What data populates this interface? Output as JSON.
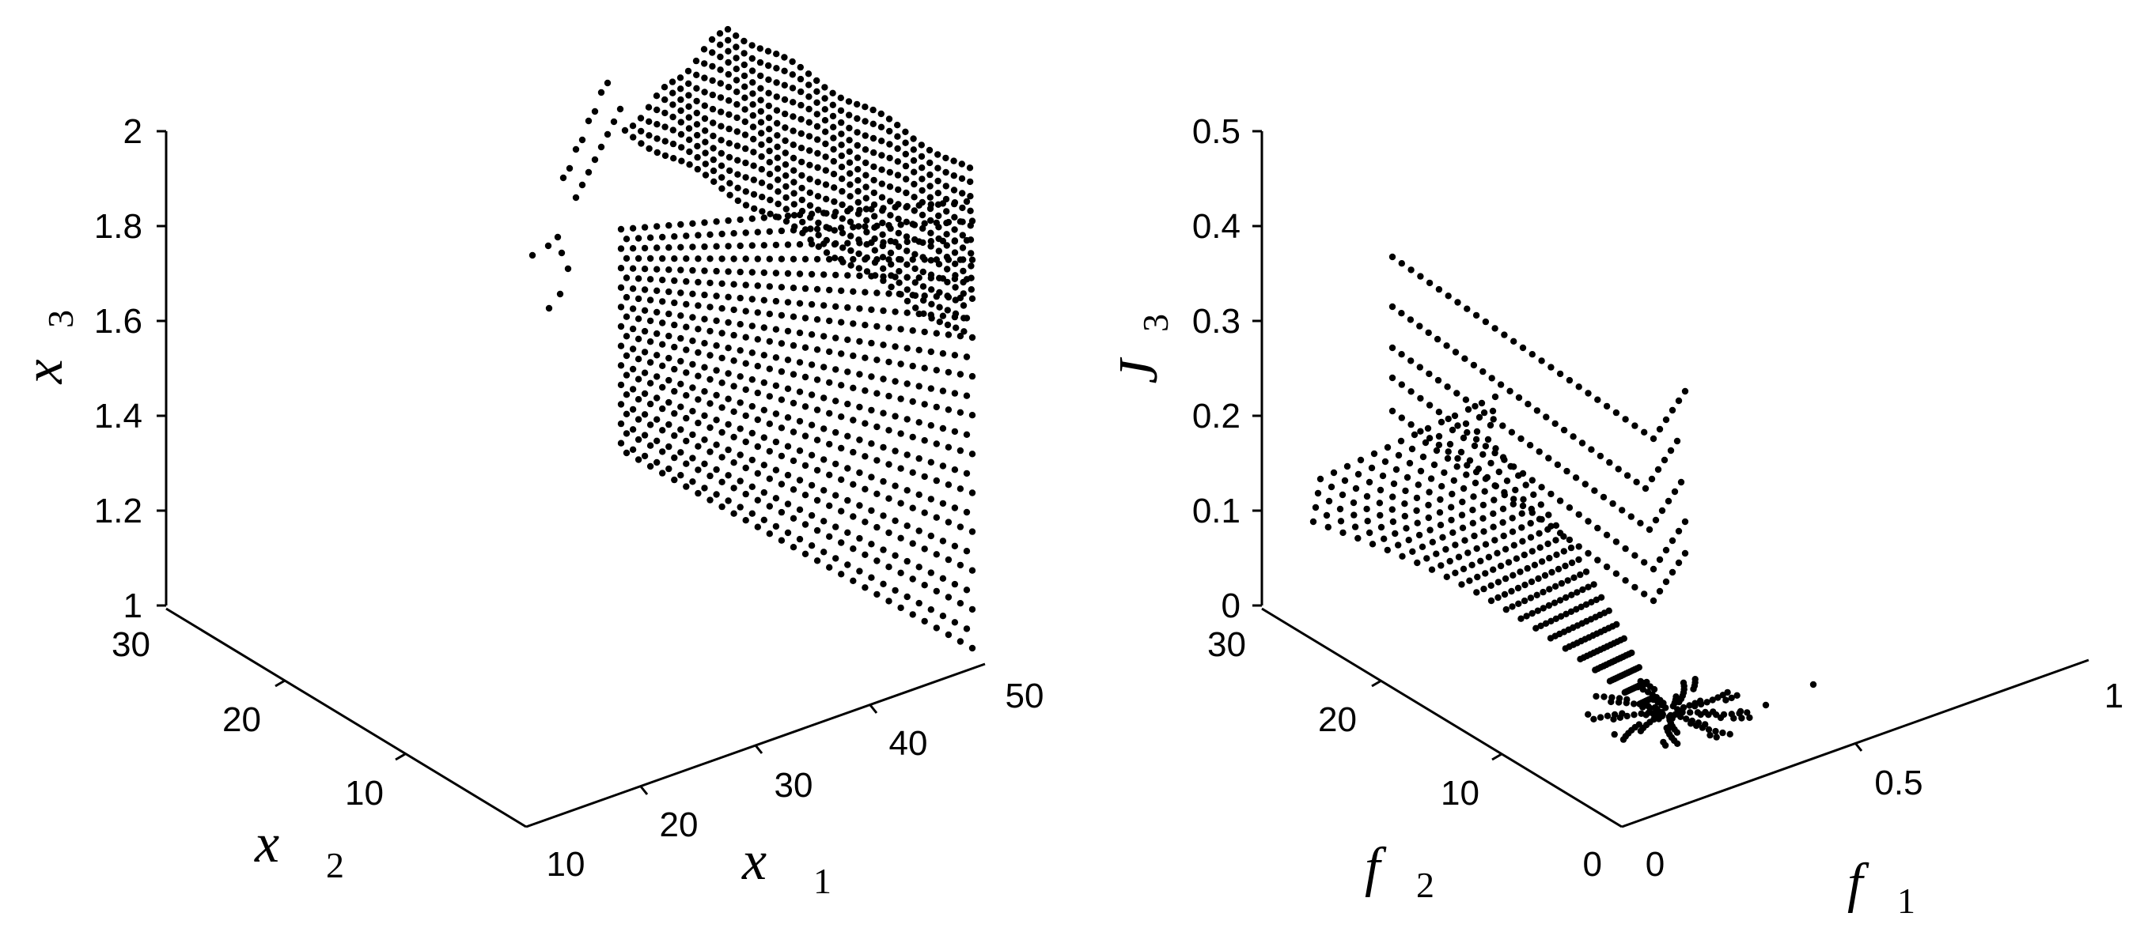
{
  "chart_data": [
    {
      "type": "scatter",
      "projection": "3d",
      "xlabel": "x",
      "xlabel_sub": "1",
      "ylabel": "x",
      "ylabel_sub": "2",
      "zlabel": "x",
      "zlabel_sub": "3",
      "xlim": [
        10,
        50
      ],
      "ylim": [
        0,
        30
      ],
      "zlim": [
        1,
        2
      ],
      "x_ticks": [
        "10",
        "20",
        "30",
        "40",
        "50"
      ],
      "y_ticks": [
        "30",
        "20",
        "10"
      ],
      "z_ticks": [
        "1",
        "1.2",
        "1.4",
        "1.6",
        "1.8",
        "2"
      ],
      "grid": false,
      "marker_color": "#000000",
      "description_of_points": {
        "plane": {
          "x_range": [
            10,
            50
          ],
          "y_range": [
            0,
            30
          ],
          "z_range": [
            1.2,
            2.0
          ],
          "note": "dense lattice of Pareto-set points lying on a plane"
        },
        "ridge": {
          "x_range": [
            10,
            50
          ],
          "y": 30,
          "z_range": [
            1.7,
            2.0
          ],
          "note": "wavy crest rows at the top of the plane"
        },
        "outliers": [
          {
            "x": 10,
            "y": 30,
            "z": 1.76
          },
          {
            "x": 10,
            "y": 29,
            "z": 1.62
          },
          {
            "x": 12,
            "y": 30,
            "z": 1.74
          },
          {
            "x": 12,
            "y": 29,
            "z": 1.68
          }
        ]
      }
    },
    {
      "type": "scatter",
      "projection": "3d",
      "xlabel": "f",
      "xlabel_sub": "1",
      "ylabel": "f",
      "ylabel_sub": "2",
      "zlabel": "J",
      "zlabel_sub": "3",
      "xlim": [
        0,
        1
      ],
      "ylim": [
        0,
        30
      ],
      "zlim": [
        0,
        0.5
      ],
      "x_ticks": [
        "0",
        "0.5",
        "1"
      ],
      "y_ticks": [
        "30",
        "20",
        "10",
        "0"
      ],
      "z_ticks": [
        "0",
        "0.1",
        "0.2",
        "0.3",
        "0.4",
        "0.5"
      ],
      "grid": false,
      "marker_color": "#000000",
      "description_of_points": {
        "bands": [
          {
            "f2_start": 28,
            "J3_top": 0.12
          },
          {
            "f2_start": 26,
            "J3_top": 0.14
          },
          {
            "f2_start": 24,
            "J3_top": 0.16
          },
          {
            "f2_start": 22,
            "J3_top": 0.18
          },
          {
            "f2_start": 20,
            "J3_top": 0.2
          }
        ],
        "upper_lines": [
          {
            "J3_start": 0.35,
            "J3_end": 0.2
          },
          {
            "J3_start": 0.3,
            "J3_end": 0.16
          },
          {
            "J3_start": 0.26,
            "J3_end": 0.13
          },
          {
            "J3_start": 0.22,
            "J3_end": 0.1
          },
          {
            "J3_start": 0.18,
            "J3_end": 0.07
          }
        ],
        "note": "Pareto front curves converging toward f1≈0.1, f2≈0, J3≈0"
      }
    }
  ]
}
